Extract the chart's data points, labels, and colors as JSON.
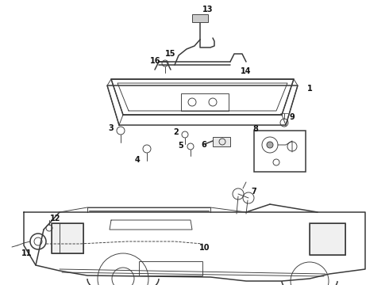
{
  "bg_color": "#ffffff",
  "line_color": "#3a3a3a",
  "label_color": "#111111",
  "label_fontsize": 7.0,
  "lw_main": 1.1,
  "lw_thin": 0.65
}
